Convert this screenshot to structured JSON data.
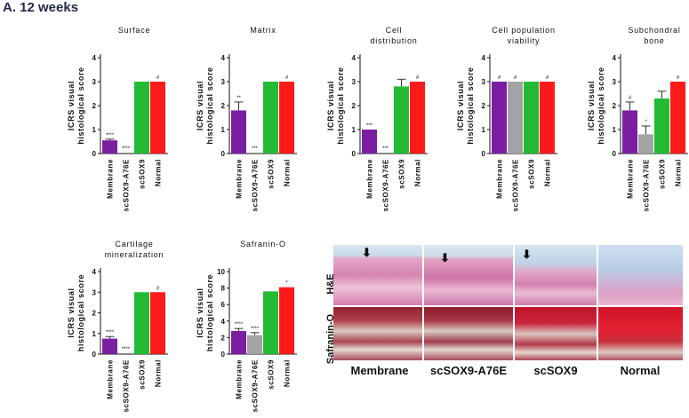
{
  "figure_label": "A. 12 weeks",
  "colors": {
    "Membrane": "#7b1fa2",
    "scSOX9-A76E": "#a3a3a3",
    "scSOX9": "#22bb33",
    "Normal": "#ff1a1a"
  },
  "chart_data": [
    {
      "type": "bar",
      "title": [
        "Surface"
      ],
      "ylabel": [
        "ICRS visual",
        "histological score"
      ],
      "ylim": [
        0,
        4
      ],
      "yticks": [
        0,
        1,
        2,
        3,
        4
      ],
      "categories": [
        "Membrane",
        "scSOX9-A76E",
        "scSOX9",
        "Normal"
      ],
      "values": [
        0.55,
        0,
        3,
        3
      ],
      "errors": [
        0.05,
        0,
        0,
        0
      ],
      "annotations": [
        "****",
        "****",
        "",
        "#"
      ]
    },
    {
      "type": "bar",
      "title": [
        "Matrix"
      ],
      "ylabel": [
        "ICRS visual",
        "histological score"
      ],
      "ylim": [
        0,
        4
      ],
      "yticks": [
        0,
        1,
        2,
        3,
        4
      ],
      "categories": [
        "Membrane",
        "scSOX9-A76E",
        "scSOX9",
        "Normal"
      ],
      "values": [
        1.8,
        0,
        3,
        3
      ],
      "errors": [
        0.35,
        0,
        0,
        0
      ],
      "annotations": [
        "**",
        "***",
        "",
        "#"
      ]
    },
    {
      "type": "bar",
      "title": [
        "Cell",
        "distribution"
      ],
      "ylabel": [
        "ICRS visual",
        "histological score"
      ],
      "ylim": [
        0,
        4
      ],
      "yticks": [
        0,
        1,
        2,
        3,
        4
      ],
      "categories": [
        "Membrane",
        "scSOX9-A76E",
        "scSOX9",
        "Normal"
      ],
      "values": [
        1.0,
        0,
        2.8,
        3
      ],
      "errors": [
        0,
        0,
        0.3,
        0
      ],
      "annotations": [
        "***",
        "***",
        "",
        "#"
      ]
    },
    {
      "type": "bar",
      "title": [
        "Cell population",
        "viability"
      ],
      "ylabel": [
        "ICRS visual",
        "histological score"
      ],
      "ylim": [
        0,
        4
      ],
      "yticks": [
        0,
        1,
        2,
        3,
        4
      ],
      "categories": [
        "Membrane",
        "scSOX9-A76E",
        "scSOX9",
        "Normal"
      ],
      "values": [
        3,
        3,
        3,
        3
      ],
      "errors": [
        0,
        0,
        0,
        0
      ],
      "annotations": [
        "#",
        "#",
        "",
        "#"
      ]
    },
    {
      "type": "bar",
      "title": [
        "Subchondral",
        "bone"
      ],
      "ylabel": [
        "ICRS visual",
        "histological score"
      ],
      "ylim": [
        0,
        4
      ],
      "yticks": [
        0,
        1,
        2,
        3,
        4
      ],
      "categories": [
        "Membrane",
        "scSOX9-A76E",
        "scSOX9",
        "Normal"
      ],
      "values": [
        1.8,
        0.8,
        2.3,
        3
      ],
      "errors": [
        0.35,
        0.35,
        0.3,
        0
      ],
      "annotations": [
        "#",
        "*",
        "",
        "#"
      ]
    },
    {
      "type": "bar",
      "title": [
        "Cartilage",
        "mineralization"
      ],
      "ylabel": [
        "ICRS visual",
        "histological score"
      ],
      "ylim": [
        0,
        4
      ],
      "yticks": [
        0,
        1,
        2,
        3,
        4
      ],
      "categories": [
        "Membrane",
        "scSOX9-A76E",
        "scSOX9",
        "Normal"
      ],
      "values": [
        0.75,
        0,
        3,
        3
      ],
      "errors": [
        0.1,
        0,
        0,
        0
      ],
      "annotations": [
        "****",
        "****",
        "",
        "#"
      ]
    },
    {
      "type": "bar",
      "title": [
        "Safranin-O"
      ],
      "ylabel": [
        "ICRS visual",
        "histological score"
      ],
      "ylim": [
        0,
        10
      ],
      "yticks": [
        0,
        2,
        4,
        6,
        8,
        10
      ],
      "categories": [
        "Membrane",
        "scSOX9-A76E",
        "scSOX9",
        "Normal"
      ],
      "values": [
        2.8,
        2.3,
        7.6,
        8.1
      ],
      "errors": [
        0.3,
        0.3,
        0,
        0
      ],
      "annotations": [
        "****",
        "****",
        "",
        "*"
      ]
    }
  ],
  "histology": {
    "row_labels": [
      "H&E",
      "Safranin-O"
    ],
    "column_labels": [
      "Membrane",
      "scSOX9-A76E",
      "scSOX9",
      "Normal"
    ],
    "arrow_glyph": "⬇"
  }
}
